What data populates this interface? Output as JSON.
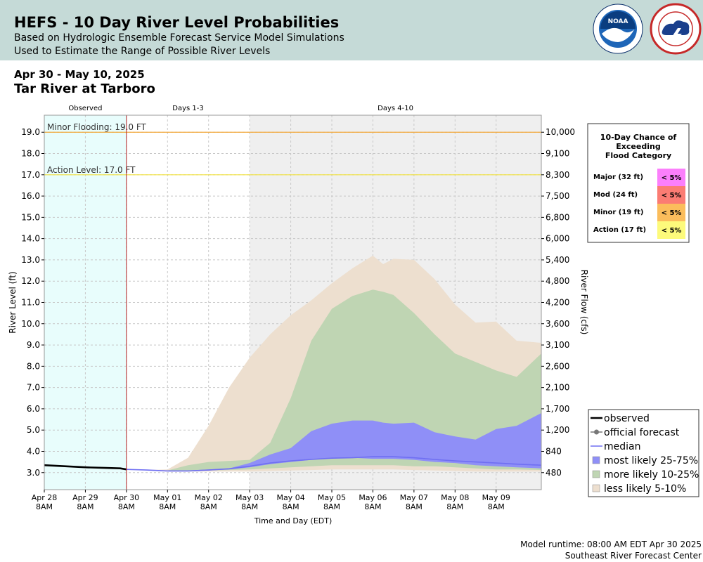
{
  "header": {
    "title": "HEFS - 10 Day River Level Probabilities",
    "subtitle1": "Based on Hydrologic Ensemble Forecast Service Model Simulations",
    "subtitle2": "Used to Estimate the Range of Possible River Levels",
    "logos": [
      "noaa-logo",
      "national-weather-service-logo"
    ]
  },
  "date_range": "Apr 30 - May 10, 2025",
  "location": "Tar River at Tarboro",
  "footer": {
    "runtime": "Model runtime: 08:00 AM EDT Apr 30 2025",
    "center": "Southeast River Forecast Center"
  },
  "chart_data": {
    "type": "area",
    "xlabel": "Time and Day (EDT)",
    "ylabel": "River Level (ft)",
    "ylabel_right": "River Flow (cfs)",
    "ylim": [
      2.2,
      19.8
    ],
    "xlim_days_from_apr28_8am": [
      0,
      12.1
    ],
    "grid": true,
    "x_ticks": [
      {
        "d": 0,
        "l1": "Apr 28",
        "l2": "8AM"
      },
      {
        "d": 1,
        "l1": "Apr 29",
        "l2": "8AM"
      },
      {
        "d": 2,
        "l1": "Apr 30",
        "l2": "8AM"
      },
      {
        "d": 3,
        "l1": "May 01",
        "l2": "8AM"
      },
      {
        "d": 4,
        "l1": "May 02",
        "l2": "8AM"
      },
      {
        "d": 5,
        "l1": "May 03",
        "l2": "8AM"
      },
      {
        "d": 6,
        "l1": "May 04",
        "l2": "8AM"
      },
      {
        "d": 7,
        "l1": "May 05",
        "l2": "8AM"
      },
      {
        "d": 8,
        "l1": "May 06",
        "l2": "8AM"
      },
      {
        "d": 9,
        "l1": "May 07",
        "l2": "8AM"
      },
      {
        "d": 10,
        "l1": "May 08",
        "l2": "8AM"
      },
      {
        "d": 11,
        "l1": "May 09",
        "l2": "8AM"
      }
    ],
    "y_ticks": [
      3.0,
      4.0,
      5.0,
      6.0,
      7.0,
      8.0,
      9.0,
      10.0,
      11.0,
      12.0,
      13.0,
      14.0,
      15.0,
      16.0,
      17.0,
      18.0,
      19.0
    ],
    "flow_ticks": [
      {
        "stage": 19.0,
        "label": "10,000"
      },
      {
        "stage": 18.0,
        "label": "9,100"
      },
      {
        "stage": 17.0,
        "label": "8,300"
      },
      {
        "stage": 16.0,
        "label": "7,500"
      },
      {
        "stage": 15.0,
        "label": "6,800"
      },
      {
        "stage": 14.0,
        "label": "6,000"
      },
      {
        "stage": 13.0,
        "label": "5,400"
      },
      {
        "stage": 12.0,
        "label": "4,800"
      },
      {
        "stage": 11.0,
        "label": "4,200"
      },
      {
        "stage": 10.0,
        "label": "3,600"
      },
      {
        "stage": 9.0,
        "label": "3,100"
      },
      {
        "stage": 8.0,
        "label": "2,600"
      },
      {
        "stage": 7.0,
        "label": "2,100"
      },
      {
        "stage": 6.0,
        "label": "1,700"
      },
      {
        "stage": 5.0,
        "label": "1,200"
      },
      {
        "stage": 4.0,
        "label": "840"
      },
      {
        "stage": 3.0,
        "label": "480"
      }
    ],
    "periods": [
      {
        "label": "Observed",
        "start": 0,
        "end": 2,
        "color": "#e8fdfc"
      },
      {
        "label": "Days 1-3",
        "start": 2,
        "end": 5,
        "color": "#ffffff"
      },
      {
        "label": "Days 4-10",
        "start": 5,
        "end": 12.1,
        "color": "#efefef"
      }
    ],
    "thresholds": [
      {
        "label": "Minor Flooding: 19.0 FT",
        "value": 19.0,
        "color": "#f2a93b"
      },
      {
        "label": "Action Level: 17.0 FT",
        "value": 17.0,
        "color": "#f2e23b"
      }
    ],
    "days": [
      2.0,
      2.5,
      3.0,
      3.5,
      4.0,
      4.5,
      5.0,
      5.5,
      6.0,
      6.5,
      7.0,
      7.5,
      8.0,
      8.25,
      8.5,
      9.0,
      9.5,
      10.0,
      10.5,
      11.0,
      11.5,
      12.1
    ],
    "series": [
      {
        "name": "less likely 5-10%",
        "color": "#eddfcf",
        "lower": [
          3.15,
          3.1,
          3.05,
          3.05,
          3.05,
          3.05,
          3.05,
          3.08,
          3.1,
          3.12,
          3.15,
          3.15,
          3.15,
          3.15,
          3.15,
          3.12,
          3.1,
          3.08,
          3.05,
          3.05,
          3.05,
          3.05
        ],
        "upper": [
          3.15,
          3.12,
          3.15,
          3.7,
          5.2,
          7.0,
          8.4,
          9.5,
          10.4,
          11.1,
          11.9,
          12.6,
          13.2,
          12.8,
          13.05,
          13.0,
          12.1,
          10.9,
          10.05,
          10.1,
          9.2,
          9.1
        ]
      },
      {
        "name": "more likely 10-25%",
        "color": "#bfd5b3",
        "lower": [
          3.15,
          3.12,
          3.08,
          3.08,
          3.1,
          3.12,
          3.15,
          3.2,
          3.25,
          3.3,
          3.35,
          3.35,
          3.35,
          3.35,
          3.35,
          3.3,
          3.3,
          3.25,
          3.2,
          3.15,
          3.15,
          3.12
        ],
        "upper": [
          3.15,
          3.12,
          3.1,
          3.35,
          3.5,
          3.55,
          3.6,
          4.4,
          6.5,
          9.2,
          10.7,
          11.3,
          11.6,
          11.5,
          11.35,
          10.5,
          9.5,
          8.6,
          8.2,
          7.8,
          7.5,
          8.6
        ]
      },
      {
        "name": "most likely 25-75%",
        "color": "#8f8ff7",
        "lower": [
          3.15,
          3.12,
          3.08,
          3.08,
          3.1,
          3.15,
          3.25,
          3.4,
          3.5,
          3.6,
          3.7,
          3.7,
          3.65,
          3.65,
          3.65,
          3.6,
          3.5,
          3.45,
          3.35,
          3.3,
          3.25,
          3.2
        ],
        "upper": [
          3.15,
          3.12,
          3.1,
          3.1,
          3.15,
          3.2,
          3.45,
          3.85,
          4.15,
          4.95,
          5.3,
          5.45,
          5.45,
          5.35,
          5.3,
          5.35,
          4.9,
          4.7,
          4.55,
          5.05,
          5.2,
          5.8
        ]
      }
    ],
    "median": {
      "name": "median",
      "color": "#6f6ff2",
      "values": [
        3.15,
        3.12,
        3.08,
        3.08,
        3.12,
        3.18,
        3.3,
        3.45,
        3.55,
        3.62,
        3.68,
        3.7,
        3.75,
        3.75,
        3.75,
        3.7,
        3.62,
        3.55,
        3.5,
        3.45,
        3.4,
        3.35
      ]
    },
    "observed": {
      "name": "observed",
      "color": "#000000",
      "days": [
        0,
        0.5,
        1.0,
        1.5,
        1.85,
        2.0
      ],
      "values": [
        3.35,
        3.3,
        3.25,
        3.22,
        3.2,
        3.15
      ]
    },
    "official_forecast": {
      "name": "official forecast",
      "color": "#777777"
    },
    "legend_placement": "bottom-right",
    "legend": [
      {
        "label": "observed",
        "kind": "line",
        "color": "#000000"
      },
      {
        "label": "official forecast",
        "kind": "line-dot",
        "color": "#777777"
      },
      {
        "label": "median",
        "kind": "line",
        "color": "#6f6ff2"
      },
      {
        "label": "most likely 25-75%",
        "kind": "box",
        "color": "#8f8ff7"
      },
      {
        "label": "more likely 10-25%",
        "kind": "box",
        "color": "#bfd5b3"
      },
      {
        "label": "less likely 5-10%",
        "kind": "box",
        "color": "#eddfcf"
      }
    ],
    "flood_table": {
      "title_lines": [
        "10-Day Chance of",
        "Exceeding",
        "Flood Category"
      ],
      "rows": [
        {
          "label": "Major (32 ft)",
          "value": "< 5%",
          "color": "#fb7ffb"
        },
        {
          "label": "Mod (24 ft)",
          "value": "< 5%",
          "color": "#fb7c73"
        },
        {
          "label": "Minor (19 ft)",
          "value": "< 5%",
          "color": "#fbbd5c"
        },
        {
          "label": "Action (17 ft)",
          "value": "< 5%",
          "color": "#fdfa7b"
        }
      ]
    }
  }
}
